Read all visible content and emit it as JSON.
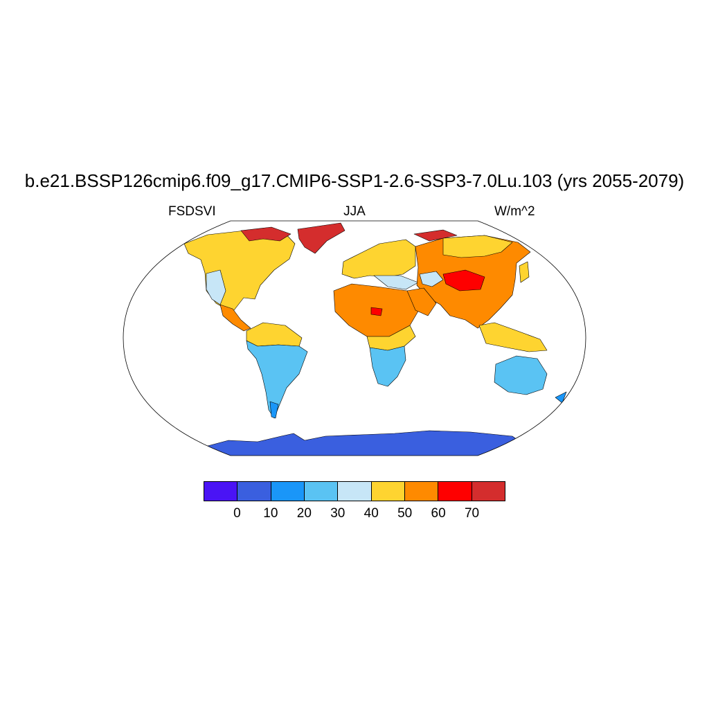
{
  "figure": {
    "title": "b.e21.BSSP126cmip6.f09_g17.CMIP6-SSP1-2.6-SSP3-7.0Lu.103 (yrs 2055-2079)",
    "left_label": "FSDSVI",
    "center_label": "JJA",
    "right_label": "W/m^2"
  },
  "colorbar": {
    "colors": [
      "#4a14f5",
      "#3a5fdf",
      "#1a96f8",
      "#5ac3f3",
      "#c7e6f7",
      "#fed430",
      "#fe8a00",
      "#fe0000",
      "#d42d2d"
    ],
    "ticks": [
      "0",
      "10",
      "20",
      "30",
      "40",
      "50",
      "60",
      "70"
    ]
  },
  "map": {
    "projection": "Robinson",
    "land_colors": {
      "v0_10": "#3a5fdf",
      "v10_20": "#1a96f8",
      "v20_30": "#5ac3f3",
      "v30_40": "#c7e6f7",
      "v40_50": "#fed430",
      "v50_60": "#fe8a00",
      "v60_70": "#fe0000",
      "v70_plus": "#d42d2d"
    }
  }
}
